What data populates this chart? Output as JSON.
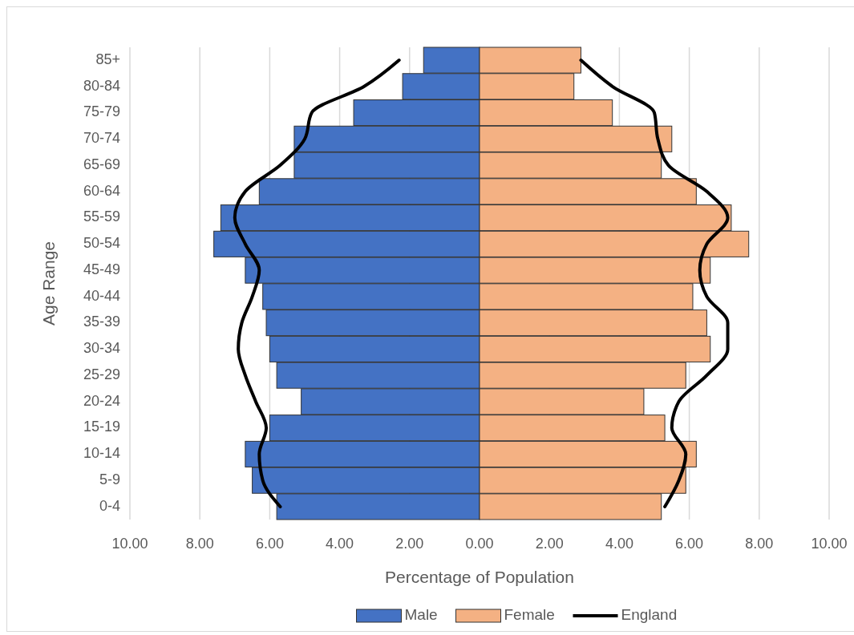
{
  "chart_data": {
    "type": "bar",
    "orientation": "horizontal",
    "stacked": true,
    "ylabel": "Age Range",
    "xlabel": "Percentage of Population",
    "categories": [
      "85+",
      "80-84",
      "75-79",
      "70-74",
      "65-69",
      "60-64",
      "55-59",
      "50-54",
      "45-49",
      "40-44",
      "35-39",
      "30-34",
      "25-29",
      "20-24",
      "15-19",
      "10-14",
      "5-9",
      "0-4"
    ],
    "series": [
      {
        "name": "Male",
        "color": "#4472c4",
        "values": [
          -1.6,
          -2.2,
          -3.6,
          -5.3,
          -5.3,
          -6.3,
          -7.4,
          -7.6,
          -6.7,
          -6.2,
          -6.1,
          -6.0,
          -5.8,
          -5.1,
          -6.0,
          -6.7,
          -6.5,
          -5.8
        ]
      },
      {
        "name": "Female",
        "color": "#f4b183",
        "values": [
          2.9,
          2.7,
          3.8,
          5.5,
          5.2,
          6.2,
          7.2,
          7.7,
          6.6,
          6.1,
          6.5,
          6.6,
          5.9,
          4.7,
          5.3,
          6.2,
          5.9,
          5.2
        ]
      },
      {
        "name": "England",
        "type": "line",
        "color": "#000000",
        "values": [
          2.9,
          3.8,
          5.0,
          5.1,
          5.4,
          6.5,
          7.1,
          6.5,
          6.3,
          6.5,
          7.1,
          7.1,
          6.5,
          5.7,
          5.5,
          5.9,
          5.7,
          5.3
        ]
      },
      {
        "type": "line",
        "color": "#000000",
        "values": [
          -2.3,
          -3.3,
          -4.8,
          -5.0,
          -5.7,
          -6.7,
          -7.0,
          -6.7,
          -6.3,
          -6.5,
          -6.8,
          -6.9,
          -6.7,
          -6.4,
          -6.1,
          -6.3,
          -6.2,
          -5.7
        ]
      }
    ],
    "xlim": [
      -10,
      10
    ],
    "xticks": [
      {
        "value": -10,
        "label": "10.00"
      },
      {
        "value": -8,
        "label": "8.00"
      },
      {
        "value": -6,
        "label": "6.00"
      },
      {
        "value": -4,
        "label": "4.00"
      },
      {
        "value": -2,
        "label": "2.00"
      },
      {
        "value": 0,
        "label": "0.00"
      },
      {
        "value": 2,
        "label": "2.00"
      },
      {
        "value": 4,
        "label": "4.00"
      },
      {
        "value": 6,
        "label": "6.00"
      },
      {
        "value": 8,
        "label": "8.00"
      },
      {
        "value": 10,
        "label": "10.00"
      }
    ],
    "grid": "x",
    "legend": "bottom"
  }
}
